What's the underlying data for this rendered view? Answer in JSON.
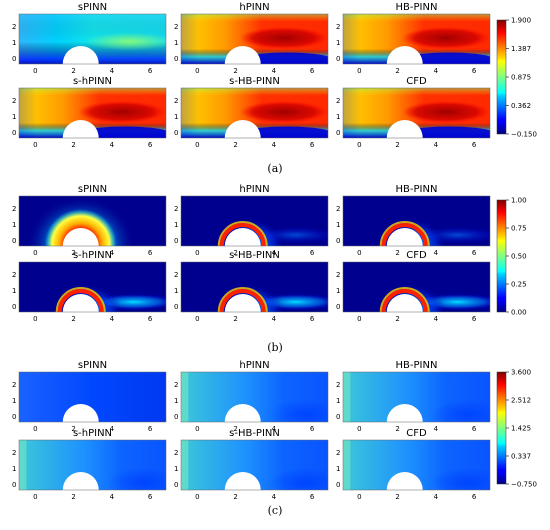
{
  "panels": [
    {
      "id": "a",
      "caption": "(a)",
      "colormap": "jet",
      "colorbar": {
        "ticks": [
          "1.900",
          "1.387",
          "0.875",
          "0.362",
          "−0.150"
        ]
      },
      "x_ticks": [
        "0",
        "2",
        "4",
        "6"
      ],
      "y_ticks": [
        "2",
        "1",
        "0"
      ],
      "subplots": [
        {
          "title": "sPINN",
          "field": "u_spinn"
        },
        {
          "title": "hPINN",
          "field": "u_full"
        },
        {
          "title": "HB-PINN",
          "field": "u_full"
        },
        {
          "title": "s-hPINN",
          "field": "u_full"
        },
        {
          "title": "s-HB-PINN",
          "field": "u_full"
        },
        {
          "title": "CFD",
          "field": "u_full"
        }
      ]
    },
    {
      "id": "b",
      "caption": "(b)",
      "colormap": "jet",
      "colorbar": {
        "ticks": [
          "1.00",
          "0.75",
          "0.50",
          "0.25",
          "0.00"
        ]
      },
      "x_ticks": [
        "0",
        "2",
        "4",
        "6"
      ],
      "y_ticks": [
        "2",
        "1",
        "0"
      ],
      "subplots": [
        {
          "title": "sPINN",
          "field": "v_spinn"
        },
        {
          "title": "hPINN",
          "field": "v_ring"
        },
        {
          "title": "HB-PINN",
          "field": "v_ring"
        },
        {
          "title": "s-hPINN",
          "field": "v_ring_wake"
        },
        {
          "title": "s-HB-PINN",
          "field": "v_ring_wake"
        },
        {
          "title": "CFD",
          "field": "v_ring_wake"
        }
      ]
    },
    {
      "id": "c",
      "caption": "(c)",
      "colormap": "jet",
      "colorbar": {
        "ticks": [
          "3.600",
          "2.512",
          "1.425",
          "0.337",
          "−0.750"
        ]
      },
      "x_ticks": [
        "0",
        "2",
        "4",
        "6"
      ],
      "y_ticks": [
        "2",
        "1",
        "0"
      ],
      "subplots": [
        {
          "title": "sPINN",
          "field": "p_low"
        },
        {
          "title": "hPINN",
          "field": "p_mid"
        },
        {
          "title": "HB-PINN",
          "field": "p_mid"
        },
        {
          "title": "s-hPINN",
          "field": "p_mid"
        },
        {
          "title": "s-HB-PINN",
          "field": "p_mid"
        },
        {
          "title": "CFD",
          "field": "p_mid"
        }
      ]
    }
  ]
}
